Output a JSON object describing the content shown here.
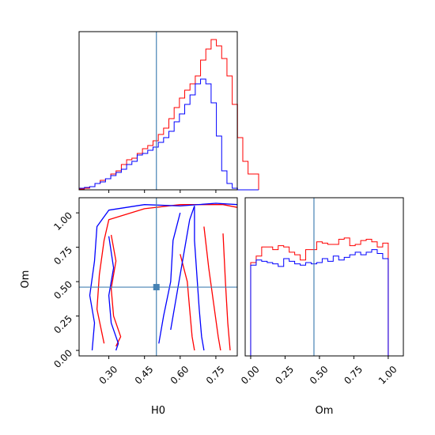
{
  "colors": {
    "series_a": "#ff0000",
    "series_b": "#0000ff",
    "truth": "#4682b4"
  },
  "chart_data": [
    {
      "panel": "H0-marginal",
      "type": "histogram",
      "x_range": [
        0.175,
        0.84
      ],
      "truth_x": 0.5,
      "bin_start": 0.175,
      "bin_width": 0.0222,
      "series": [
        {
          "color": "red",
          "values": [
            0.005,
            0.01,
            0.02,
            0.04,
            0.06,
            0.07,
            0.1,
            0.12,
            0.16,
            0.19,
            0.2,
            0.23,
            0.26,
            0.28,
            0.31,
            0.35,
            0.39,
            0.45,
            0.52,
            0.58,
            0.63,
            0.67,
            0.72,
            0.82,
            0.89,
            0.95,
            0.91,
            0.83,
            0.72,
            0.54,
            0.33,
            0.18,
            0.1,
            0.1
          ]
        },
        {
          "color": "blue",
          "values": [
            0.01,
            0.015,
            0.02,
            0.04,
            0.05,
            0.07,
            0.09,
            0.11,
            0.13,
            0.16,
            0.18,
            0.22,
            0.23,
            0.25,
            0.27,
            0.3,
            0.33,
            0.37,
            0.43,
            0.48,
            0.54,
            0.6,
            0.67,
            0.7,
            0.67,
            0.55,
            0.34,
            0.12,
            0.04,
            0.01,
            0.0,
            0.0,
            0.0,
            0.0
          ]
        }
      ]
    },
    {
      "panel": "H0-Om-contour",
      "type": "contour",
      "xlabel": "H0",
      "ylabel": "Om",
      "x_range": [
        0.175,
        0.84
      ],
      "y_range": [
        -0.04,
        1.11
      ],
      "x_ticks": [
        "0.30",
        "0.45",
        "0.60",
        "0.75"
      ],
      "x_tick_values": [
        0.3,
        0.45,
        0.6,
        0.75
      ],
      "y_ticks": [
        "0.00",
        "0.25",
        "0.50",
        "0.75",
        "1.00"
      ],
      "y_tick_values": [
        0.0,
        0.25,
        0.5,
        0.75,
        1.0
      ],
      "truth": {
        "x": 0.5,
        "y": 0.46
      },
      "contours": [
        {
          "color": "red",
          "points": [
            [
              0.28,
              0.05
            ],
            [
              0.25,
              0.3
            ],
            [
              0.26,
              0.55
            ],
            [
              0.28,
              0.8
            ],
            [
              0.3,
              0.95
            ],
            [
              0.45,
              1.03
            ],
            [
              0.6,
              1.06
            ],
            [
              0.78,
              1.06
            ],
            [
              0.84,
              1.04
            ]
          ]
        },
        {
          "color": "red",
          "points": [
            [
              0.6,
              0.7
            ],
            [
              0.63,
              0.5
            ],
            [
              0.64,
              0.3
            ],
            [
              0.65,
              0.1
            ],
            [
              0.66,
              0.0
            ]
          ]
        },
        {
          "color": "red",
          "points": [
            [
              0.7,
              0.9
            ],
            [
              0.72,
              0.6
            ],
            [
              0.74,
              0.35
            ],
            [
              0.76,
              0.1
            ],
            [
              0.77,
              0.0
            ]
          ]
        },
        {
          "color": "red",
          "points": [
            [
              0.78,
              0.85
            ],
            [
              0.79,
              0.5
            ],
            [
              0.8,
              0.2
            ],
            [
              0.81,
              0.0
            ]
          ]
        },
        {
          "color": "red",
          "points": [
            [
              0.31,
              0.84
            ],
            [
              0.33,
              0.65
            ],
            [
              0.31,
              0.45
            ],
            [
              0.32,
              0.25
            ],
            [
              0.35,
              0.1
            ],
            [
              0.33,
              0.03
            ]
          ]
        },
        {
          "color": "blue",
          "points": [
            [
              0.23,
              0.0
            ],
            [
              0.24,
              0.2
            ],
            [
              0.22,
              0.4
            ],
            [
              0.24,
              0.65
            ],
            [
              0.25,
              0.9
            ],
            [
              0.3,
              1.02
            ],
            [
              0.45,
              1.06
            ],
            [
              0.6,
              1.05
            ],
            [
              0.75,
              1.07
            ],
            [
              0.84,
              1.06
            ]
          ]
        },
        {
          "color": "blue",
          "points": [
            [
              0.66,
              1.05
            ],
            [
              0.66,
              0.8
            ],
            [
              0.67,
              0.55
            ],
            [
              0.68,
              0.3
            ],
            [
              0.69,
              0.1
            ],
            [
              0.7,
              0.0
            ]
          ]
        },
        {
          "color": "blue",
          "points": [
            [
              0.56,
              0.15
            ],
            [
              0.58,
              0.35
            ],
            [
              0.6,
              0.55
            ],
            [
              0.62,
              0.75
            ],
            [
              0.64,
              0.95
            ],
            [
              0.66,
              1.05
            ]
          ]
        },
        {
          "color": "blue",
          "points": [
            [
              0.51,
              0.05
            ],
            [
              0.53,
              0.25
            ],
            [
              0.56,
              0.5
            ],
            [
              0.57,
              0.8
            ],
            [
              0.6,
              1.0
            ]
          ]
        },
        {
          "color": "blue",
          "points": [
            [
              0.3,
              0.83
            ],
            [
              0.32,
              0.6
            ],
            [
              0.3,
              0.4
            ],
            [
              0.31,
              0.2
            ],
            [
              0.34,
              0.05
            ],
            [
              0.33,
              0.0
            ]
          ]
        }
      ]
    },
    {
      "panel": "Om-marginal",
      "type": "histogram",
      "xlabel": "Om",
      "x_range": [
        -0.04,
        1.11
      ],
      "truth_x": 0.46,
      "bin_start": 0.0,
      "bin_width": 0.04,
      "x_ticks": [
        "0.00",
        "0.25",
        "0.50",
        "0.75",
        "1.00"
      ],
      "x_tick_values": [
        0.0,
        0.25,
        0.5,
        0.75,
        1.0
      ],
      "series": [
        {
          "color": "red",
          "values": [
            0.72,
            0.77,
            0.84,
            0.84,
            0.82,
            0.85,
            0.84,
            0.8,
            0.78,
            0.74,
            0.82,
            0.82,
            0.88,
            0.87,
            0.86,
            0.86,
            0.9,
            0.91,
            0.85,
            0.86,
            0.89,
            0.9,
            0.88,
            0.84,
            0.87
          ]
        },
        {
          "color": "blue",
          "values": [
            0.7,
            0.74,
            0.73,
            0.72,
            0.71,
            0.69,
            0.75,
            0.73,
            0.71,
            0.7,
            0.72,
            0.71,
            0.72,
            0.75,
            0.73,
            0.77,
            0.74,
            0.76,
            0.78,
            0.8,
            0.78,
            0.8,
            0.82,
            0.79,
            0.75
          ]
        }
      ]
    }
  ],
  "labels": {
    "x_label_contour": "H0",
    "y_label_contour": "Om",
    "x_label_om": "Om"
  }
}
